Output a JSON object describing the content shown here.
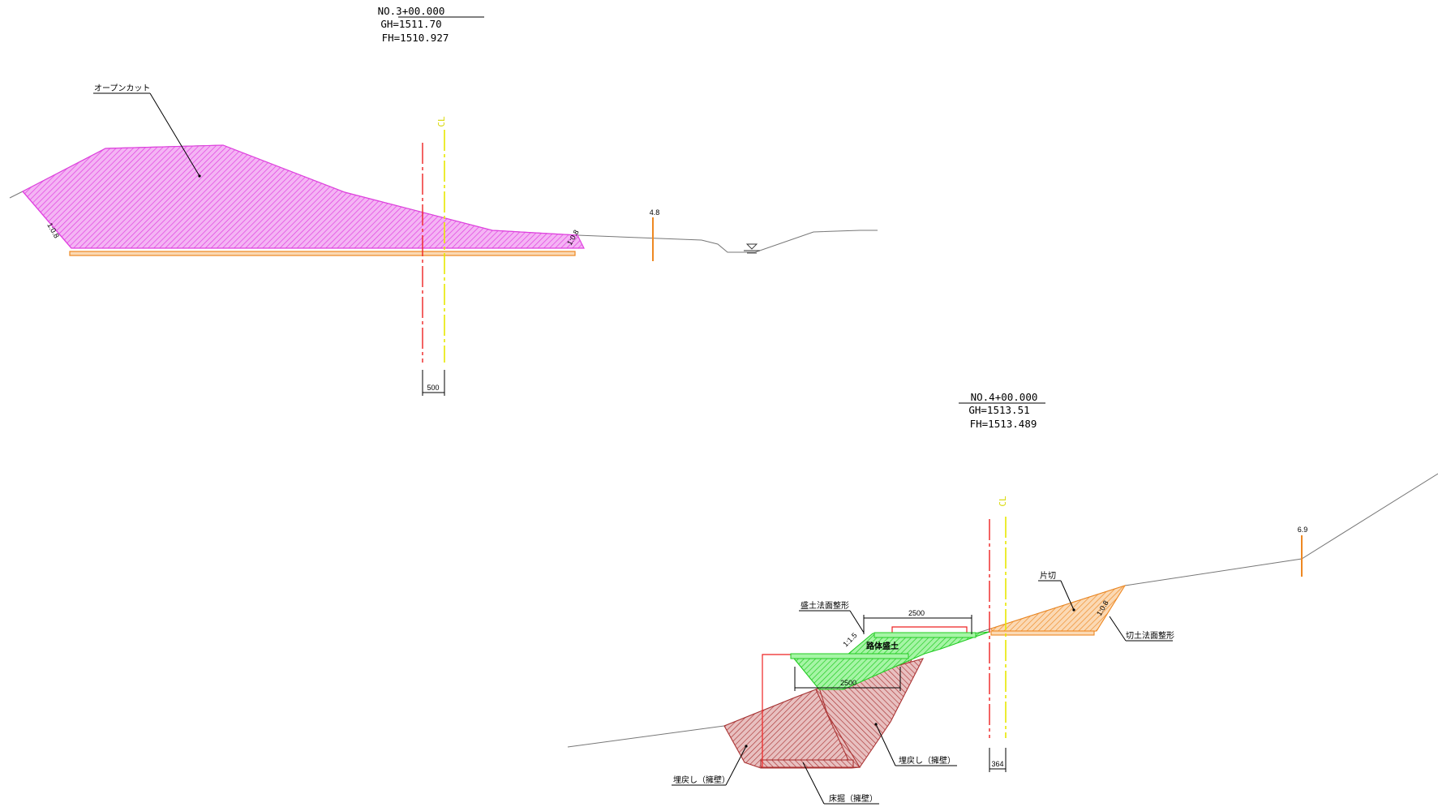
{
  "section_3": {
    "station": "NO.3+00.000",
    "gh": "GH=1511.70",
    "fh": "FH=1510.927",
    "cl_mark": "CL",
    "label_open_cut": "オープンカット",
    "slope_left": "1:0.8",
    "slope_right": "1:0.8",
    "marker_value": "4.8",
    "offset_dim": "500"
  },
  "section_4": {
    "station": "NO.4+00.000",
    "gh": "GH=1513.51",
    "fh": "FH=1513.489",
    "cl_mark": "CL",
    "label_fill_face": "盛土法面整形",
    "label_body_fill": "路体盛土",
    "label_side_cut": "片切",
    "label_cut_face": "切土法面整形",
    "label_backfill_right": "埋戻し（擁壁）",
    "label_backfill_left": "埋戻し（擁壁）",
    "label_bed_excavation": "床掘（擁壁）",
    "slope_fill": "1:1.5",
    "slope_cut": "1:0.8",
    "dim_top": "2500",
    "dim_mid": "2500",
    "offset_dim": "364",
    "marker_value": "6.9"
  },
  "colors": {
    "open_cut": "#e040e0",
    "fill": "#22dd22",
    "cut": "#ee8822",
    "backfill": "#aa3333",
    "center_red": "#ee2222",
    "center_yellow": "#eeee00",
    "ground": "#777777"
  }
}
